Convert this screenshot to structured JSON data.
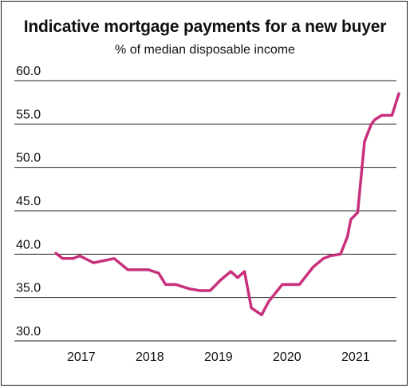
{
  "chart_data": {
    "type": "line",
    "title": "Indicative mortgage payments for a new buyer",
    "subtitle": "% of median disposable income",
    "xlabel": "",
    "ylabel": "",
    "ylim": [
      30,
      60
    ],
    "xlim": [
      2016.85,
      2021.85
    ],
    "y_ticks": [
      "30.0",
      "35.0",
      "40.0",
      "45.0",
      "50.0",
      "55.0",
      "60.0"
    ],
    "x_ticks": [
      "2017",
      "2018",
      "2019",
      "2020",
      "2021"
    ],
    "grid": "horizontal",
    "line_color": "#c8307c",
    "series": [
      {
        "x": [
          2016.85,
          2016.95,
          2017.1,
          2017.2,
          2017.4,
          2017.7,
          2017.9,
          2018.0,
          2018.2,
          2018.35,
          2018.45,
          2018.6,
          2018.8,
          2018.95,
          2019.1,
          2019.25,
          2019.4,
          2019.5,
          2019.6,
          2019.7,
          2019.85,
          2019.95,
          2020.15,
          2020.4,
          2020.6,
          2020.75,
          2020.85,
          2021.0,
          2021.1,
          2021.15,
          2021.25,
          2021.35,
          2021.45,
          2021.5,
          2021.6,
          2021.75,
          2021.85
        ],
        "y": [
          40.1,
          39.5,
          39.5,
          39.8,
          39.0,
          39.5,
          38.2,
          38.2,
          38.2,
          37.8,
          36.5,
          36.5,
          36.0,
          35.8,
          35.8,
          37.0,
          38.0,
          37.3,
          38.0,
          33.8,
          33.0,
          34.5,
          36.5,
          36.5,
          38.5,
          39.5,
          39.8,
          40.0,
          42.0,
          44.0,
          44.8,
          53.0,
          55.0,
          55.5,
          56.0,
          56.0,
          58.5
        ]
      }
    ]
  }
}
